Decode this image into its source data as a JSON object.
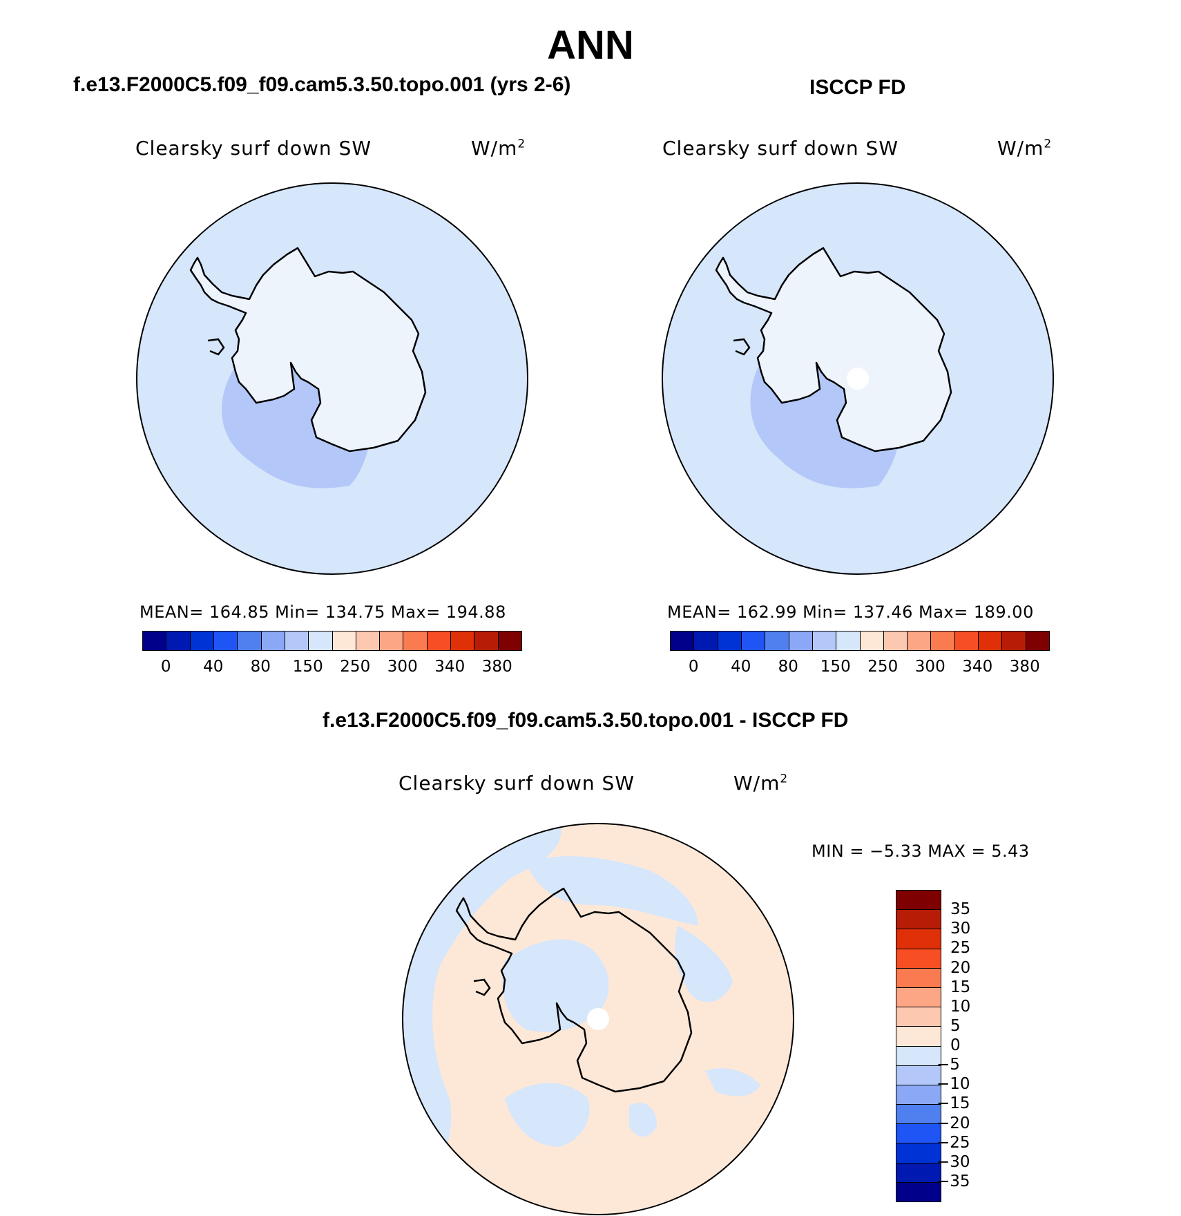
{
  "figure": {
    "title": "ANN",
    "panel1_title": "f.e13.F2000C5.f09_f09.cam5.3.50.topo.001 (yrs 2-6)",
    "panel2_title": "ISCCP FD",
    "panel3_title": "f.e13.F2000C5.f09_f09.cam5.3.50.topo.001 - ISCCP FD"
  },
  "panels": [
    {
      "variable": "Clearsky surf down SW",
      "units": "W/m",
      "units_exp": "2",
      "stats": "MEAN=  164.85    Min=  134.75    Max=  194.88"
    },
    {
      "variable": "Clearsky surf down SW",
      "units": "W/m",
      "units_exp": "2",
      "stats": "MEAN=  162.99    Min=  137.46    Max=  189.00"
    },
    {
      "variable": "Clearsky surf down SW",
      "units": "W/m",
      "units_exp": "2",
      "stats": "MIN =    −5.33  MAX =     5.43"
    }
  ],
  "colorbar_abs": {
    "colors": [
      "#00008b",
      "#0019b0",
      "#0033d6",
      "#1f55f5",
      "#5080f0",
      "#8aa8f5",
      "#b3c8f8",
      "#d6e6fb",
      "#fde8d8",
      "#fdc8b0",
      "#fca685",
      "#fb7b50",
      "#f84e24",
      "#e03008",
      "#b71c07",
      "#7f0000"
    ],
    "labels": [
      "0",
      "40",
      "80",
      "150",
      "250",
      "300",
      "340",
      "380"
    ]
  },
  "colorbar_diff": {
    "colors": [
      "#7f0000",
      "#b71c07",
      "#e03008",
      "#f84e24",
      "#fb7b50",
      "#fca685",
      "#fdc8b0",
      "#fde8d8",
      "#d6e6fb",
      "#b3c8f8",
      "#8aa8f5",
      "#5080f0",
      "#1f55f5",
      "#0033d6",
      "#0019b0",
      "#00008b"
    ],
    "labels": [
      "35",
      "30",
      "25",
      "20",
      "15",
      "10",
      "5",
      "0",
      "−5",
      "−10",
      "−15",
      "−20",
      "−25",
      "−30",
      "−35"
    ]
  },
  "map_colors": {
    "ocean_light_blue": "#d6e6fb",
    "mid_blue": "#b3c8f8",
    "peach": "#fde8d8",
    "pole_hole": "#ffffff"
  }
}
